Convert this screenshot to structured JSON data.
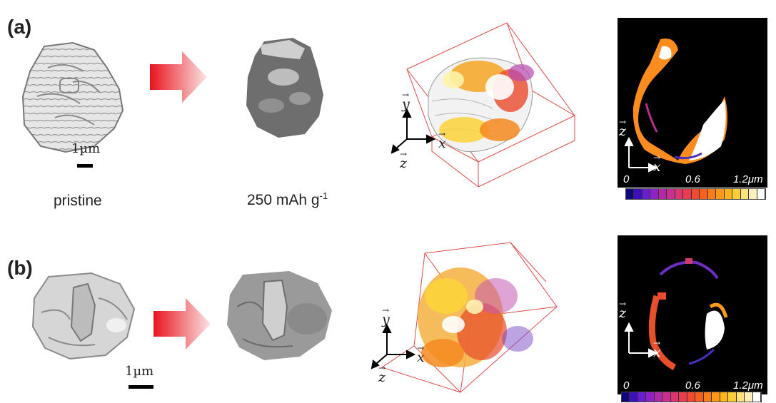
{
  "figure": {
    "row_a": {
      "label": "(a)",
      "scale_bar": "1µm",
      "caption_pristine": "pristine",
      "caption_cycled": "250 mAh g",
      "caption_cycled_sup": "-1",
      "axes_3d": [
        "y",
        "x",
        "z"
      ],
      "axes_2d": [
        "z",
        "x"
      ],
      "colorbar_ticks": [
        "0",
        "0.6",
        "1.2μm"
      ]
    },
    "row_b": {
      "label": "(b)",
      "scale_bar": "1µm",
      "axes_3d": [
        "y",
        "x",
        "z"
      ],
      "axes_2d": [
        "z",
        "x"
      ],
      "colorbar_ticks": [
        "0",
        "0.6",
        "1.2μm"
      ]
    },
    "colors": {
      "arrow_start": "#e8141e",
      "arrow_end": "#fbe3e3",
      "box_edges": "#e04848",
      "colormap": [
        "#10087a",
        "#3d10b8",
        "#6a1ed0",
        "#8e22c2",
        "#b02aa6",
        "#c83090",
        "#da3670",
        "#e83c50",
        "#f04a32",
        "#f66020",
        "#fa7c18",
        "#fc9a16",
        "#fdb41a",
        "#fdcc38",
        "#fde27a",
        "#fef0b8",
        "#ffffff"
      ]
    }
  }
}
